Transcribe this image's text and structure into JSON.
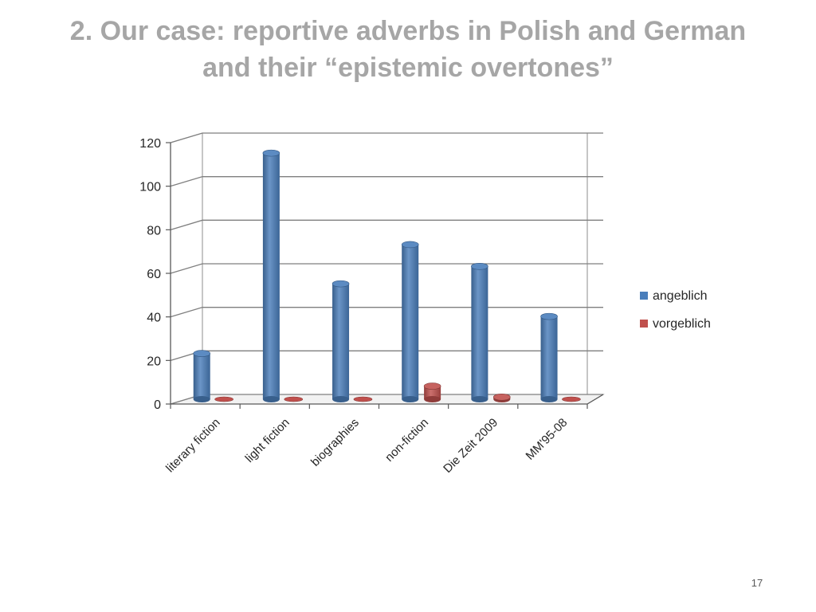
{
  "slide": {
    "title_line1": "2. Our case: reportive adverbs in Polish and German",
    "title_line2": "and their “epistemic overtones”",
    "page_number": "17"
  },
  "chart_data": {
    "type": "bar",
    "categories": [
      "literary fiction",
      "light fiction",
      "biographies",
      "non-fiction",
      "Die Zeit 2009",
      "MM'95-08"
    ],
    "series": [
      {
        "name": "angeblich",
        "values": [
          21,
          113,
          53,
          71,
          61,
          38
        ],
        "color": "#4a7ebb"
      },
      {
        "name": "vorgeblich",
        "values": [
          0,
          0,
          0,
          6,
          1,
          0
        ],
        "color": "#c0504d"
      }
    ],
    "ylim": [
      0,
      120
    ],
    "yticks": [
      0,
      20,
      40,
      60,
      80,
      100,
      120
    ],
    "grid": true,
    "legend_position": "right",
    "three_d": true
  }
}
